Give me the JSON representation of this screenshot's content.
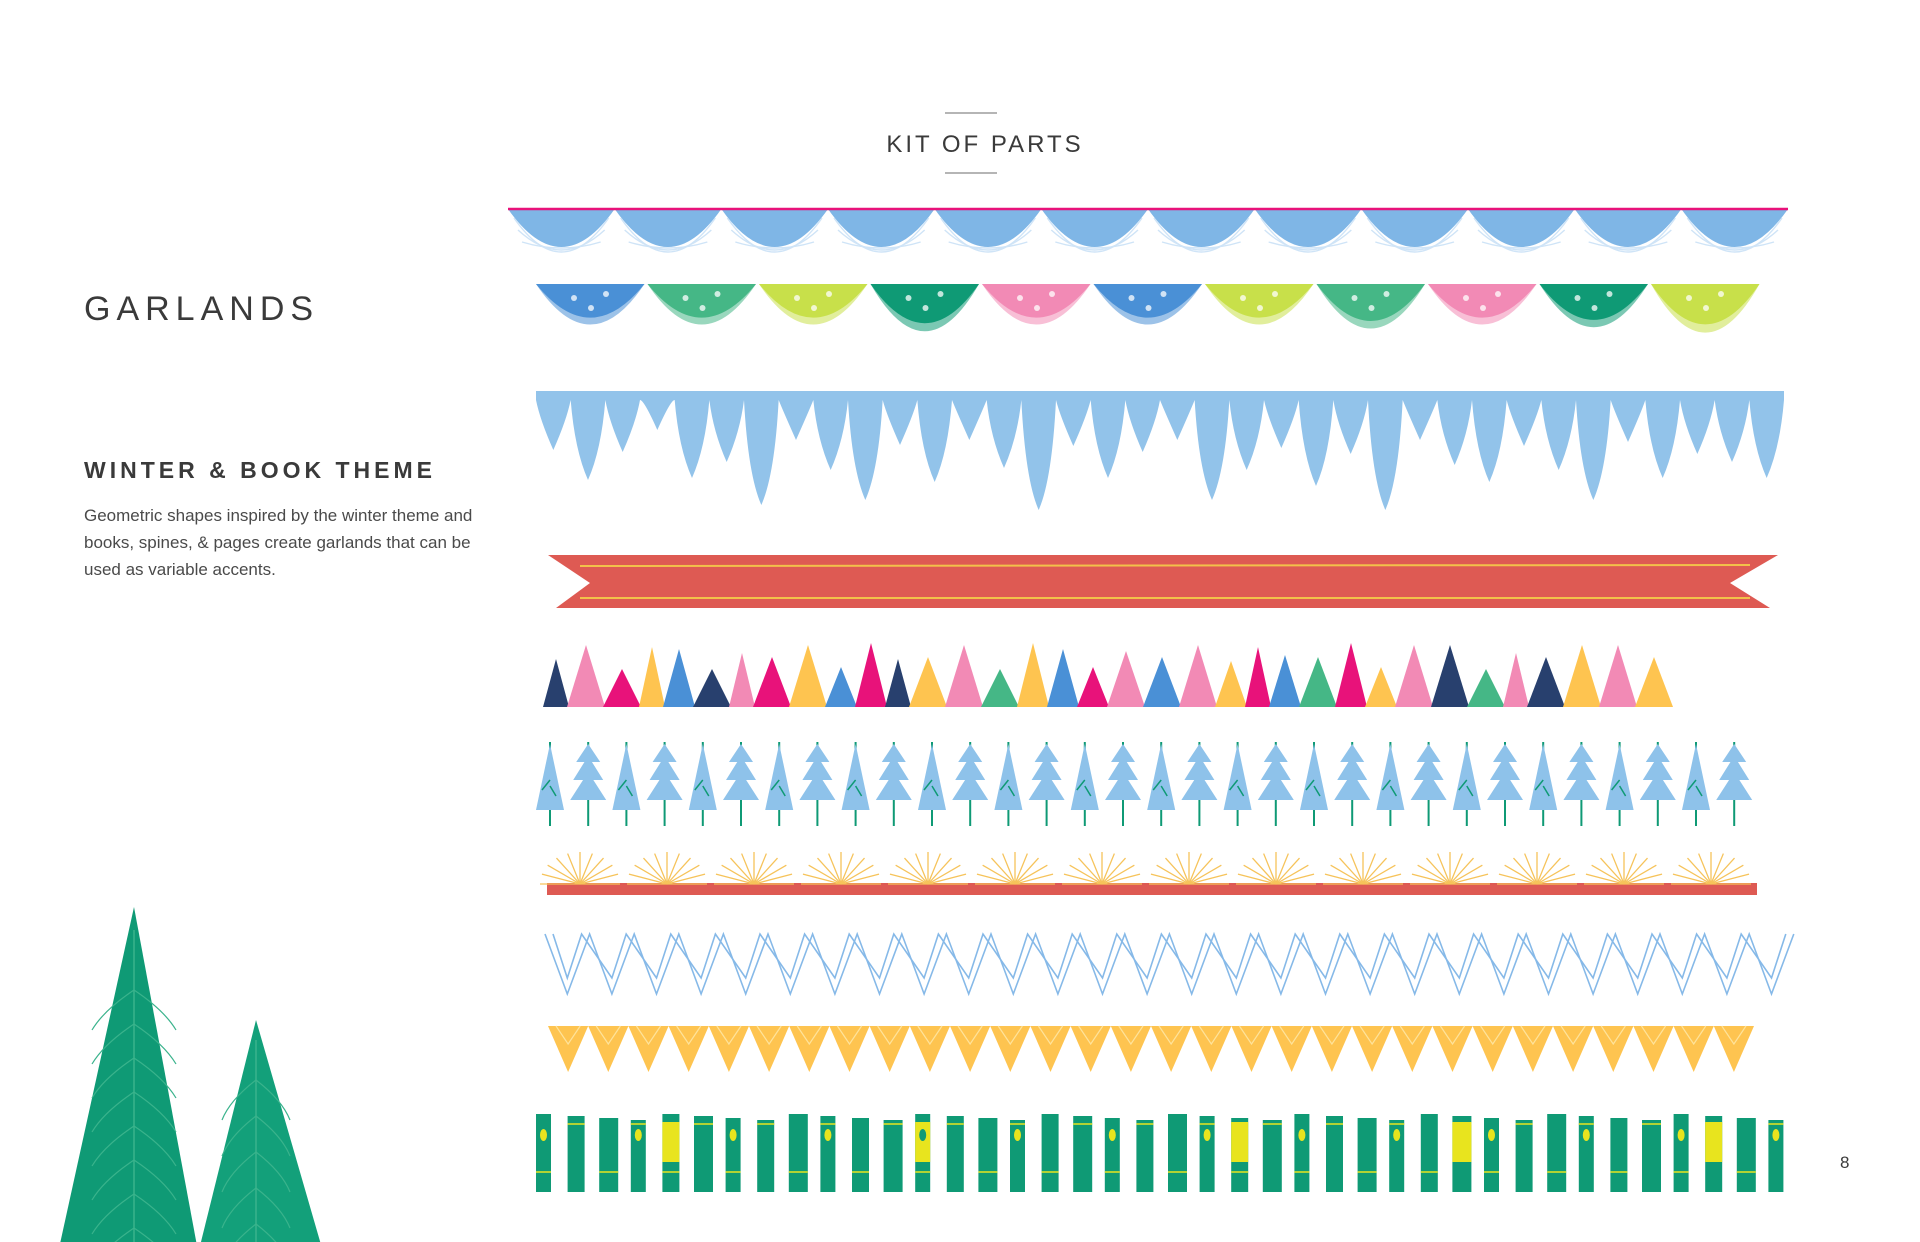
{
  "header": {
    "title": "KIT OF PARTS"
  },
  "section": {
    "title": "GARLANDS",
    "subtitle": "WINTER & BOOK THEME",
    "description": "Geometric shapes inspired by the winter theme and books, spines, & pages create garlands that can be used as variable accents."
  },
  "page_number": "8",
  "palette": {
    "sky_blue": "#92c3ea",
    "mid_blue": "#4a90d6",
    "teal_green": "#0f9a75",
    "mint_green": "#45b786",
    "lime": "#c8e04a",
    "pink": "#f28ab5",
    "magenta": "#e8127a",
    "navy": "#28406e",
    "coral_red": "#de5a53",
    "yellow_orange": "#fec450",
    "book_yellow": "#e8e41e"
  },
  "garlands": [
    {
      "name": "scalloped-drape",
      "icon": "scallop-drape-icon"
    },
    {
      "name": "bunting-flags",
      "icon": "bunting-icon"
    },
    {
      "name": "icicles",
      "icon": "icicle-icon"
    },
    {
      "name": "ribbon-banner",
      "icon": "ribbon-icon"
    },
    {
      "name": "triangle-pennants",
      "icon": "triangle-icon"
    },
    {
      "name": "pine-trees",
      "icon": "pine-tree-icon"
    },
    {
      "name": "sunburst-strip",
      "icon": "sunburst-icon"
    },
    {
      "name": "zigzag-chevrons",
      "icon": "chevron-icon"
    },
    {
      "name": "yellow-triangles",
      "icon": "triangle-down-icon"
    },
    {
      "name": "book-spines",
      "icon": "book-spine-icon"
    }
  ]
}
